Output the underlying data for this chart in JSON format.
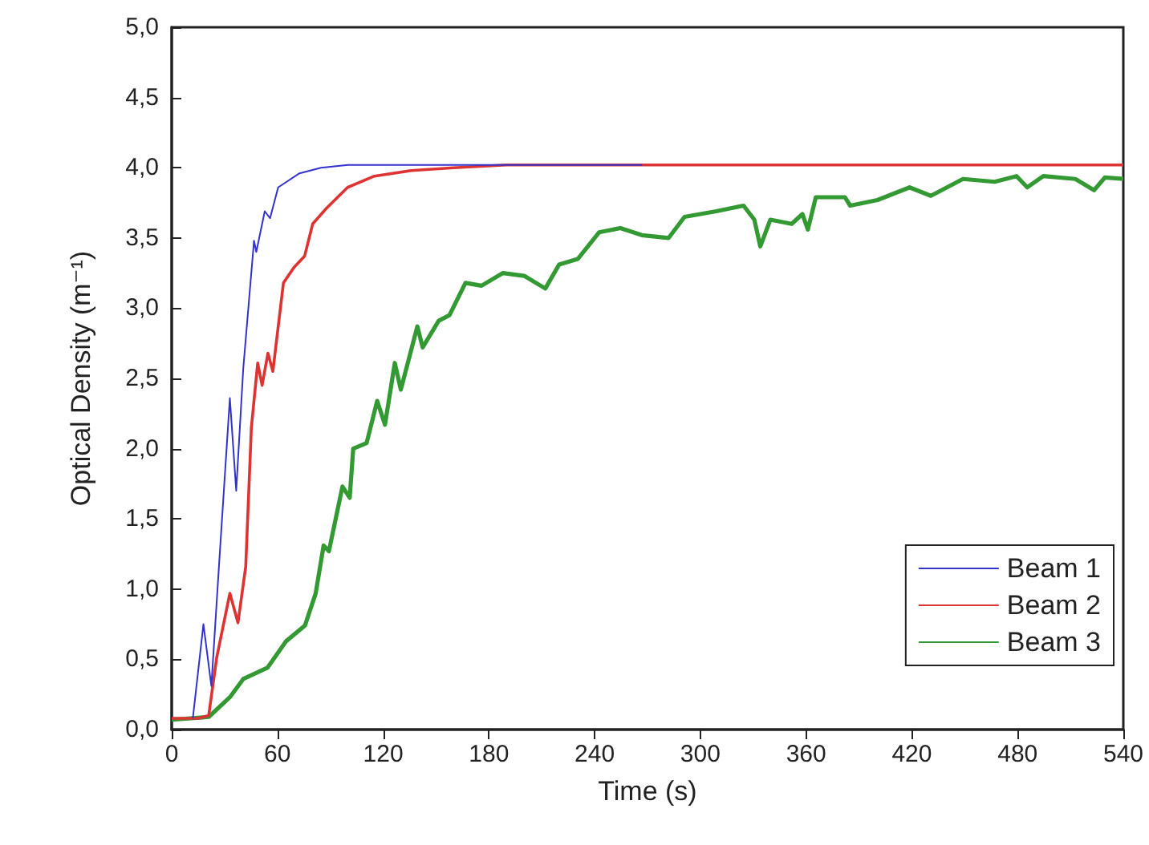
{
  "chart_data": {
    "type": "line",
    "xlabel": "Time (s)",
    "ylabel": "Optical Density (m⁻¹)",
    "xlim": [
      0,
      540
    ],
    "xticks": [
      0,
      60,
      120,
      180,
      240,
      300,
      360,
      420,
      480,
      540
    ],
    "ylim": [
      0,
      5
    ],
    "yticks": [
      {
        "value": 0,
        "label": "0,0"
      },
      {
        "value": 0.5,
        "label": "0,5"
      },
      {
        "value": 1,
        "label": "1,0"
      },
      {
        "value": 1.5,
        "label": "1,5"
      },
      {
        "value": 2,
        "label": "2,0"
      },
      {
        "value": 2.5,
        "label": "2,5"
      },
      {
        "value": 3,
        "label": "3,0"
      },
      {
        "value": 3.5,
        "label": "3,5"
      },
      {
        "value": 4,
        "label": "4,0"
      },
      {
        "value": 4.5,
        "label": "4,5"
      },
      {
        "value": 5,
        "label": "5,0"
      }
    ],
    "grid": false,
    "legend": "bottom right",
    "marker": "none",
    "line_style": "solid",
    "series": [
      {
        "name": "Beam 1",
        "color": "#3333cc",
        "x": [
          12,
          18,
          22.5,
          27,
          33,
          36.6,
          40.6,
          46.7,
          48,
          52.8,
          55.8,
          60.4,
          72.5,
          84.7,
          100,
          130,
          267
        ],
        "values": [
          0.08,
          0.75,
          0.31,
          1.2,
          2.36,
          1.7,
          2.57,
          3.48,
          3.4,
          3.69,
          3.64,
          3.86,
          3.96,
          4.0,
          4.02,
          4.02,
          4.02
        ]
      },
      {
        "name": "Beam 2",
        "color": "#dd3333",
        "x": [
          0,
          15,
          21,
          25.5,
          33,
          37.6,
          42,
          45.2,
          48.8,
          51.3,
          54.6,
          57.4,
          63.4,
          69.4,
          75.4,
          80,
          87.7,
          99.8,
          115,
          136,
          160,
          190,
          540
        ],
        "values": [
          0.08,
          0.08,
          0.1,
          0.51,
          0.97,
          0.76,
          1.16,
          2.15,
          2.61,
          2.45,
          2.68,
          2.55,
          3.18,
          3.29,
          3.37,
          3.6,
          3.71,
          3.86,
          3.94,
          3.98,
          4.0,
          4.02,
          4.02
        ]
      },
      {
        "name": "Beam 3",
        "color": "#339933",
        "x": [
          0,
          21,
          33,
          40.6,
          54.3,
          65,
          75.6,
          81.7,
          86.2,
          89.2,
          96.9,
          101,
          103,
          110.6,
          116.6,
          121,
          126.6,
          130,
          139.4,
          142.4,
          151.5,
          157.6,
          166.7,
          175.8,
          188,
          200,
          212,
          219.8,
          230.4,
          242.5,
          254.6,
          266.8,
          282,
          291,
          309,
          324.5,
          330.6,
          334,
          339.7,
          351.8,
          357.9,
          361,
          365.5,
          382,
          385,
          400.5,
          418.7,
          430.8,
          449,
          467,
          479.4,
          485.5,
          494.6,
          512.8,
          523.4,
          529.5,
          540
        ],
        "values": [
          0.07,
          0.09,
          0.23,
          0.36,
          0.44,
          0.63,
          0.74,
          0.97,
          1.31,
          1.27,
          1.73,
          1.65,
          2.0,
          2.04,
          2.34,
          2.17,
          2.61,
          2.42,
          2.87,
          2.72,
          2.91,
          2.95,
          3.18,
          3.16,
          3.25,
          3.23,
          3.14,
          3.31,
          3.35,
          3.54,
          3.57,
          3.52,
          3.5,
          3.65,
          3.69,
          3.73,
          3.63,
          3.44,
          3.63,
          3.6,
          3.67,
          3.56,
          3.79,
          3.79,
          3.73,
          3.77,
          3.86,
          3.8,
          3.92,
          3.9,
          3.94,
          3.86,
          3.94,
          3.92,
          3.84,
          3.93,
          3.92
        ]
      }
    ]
  }
}
